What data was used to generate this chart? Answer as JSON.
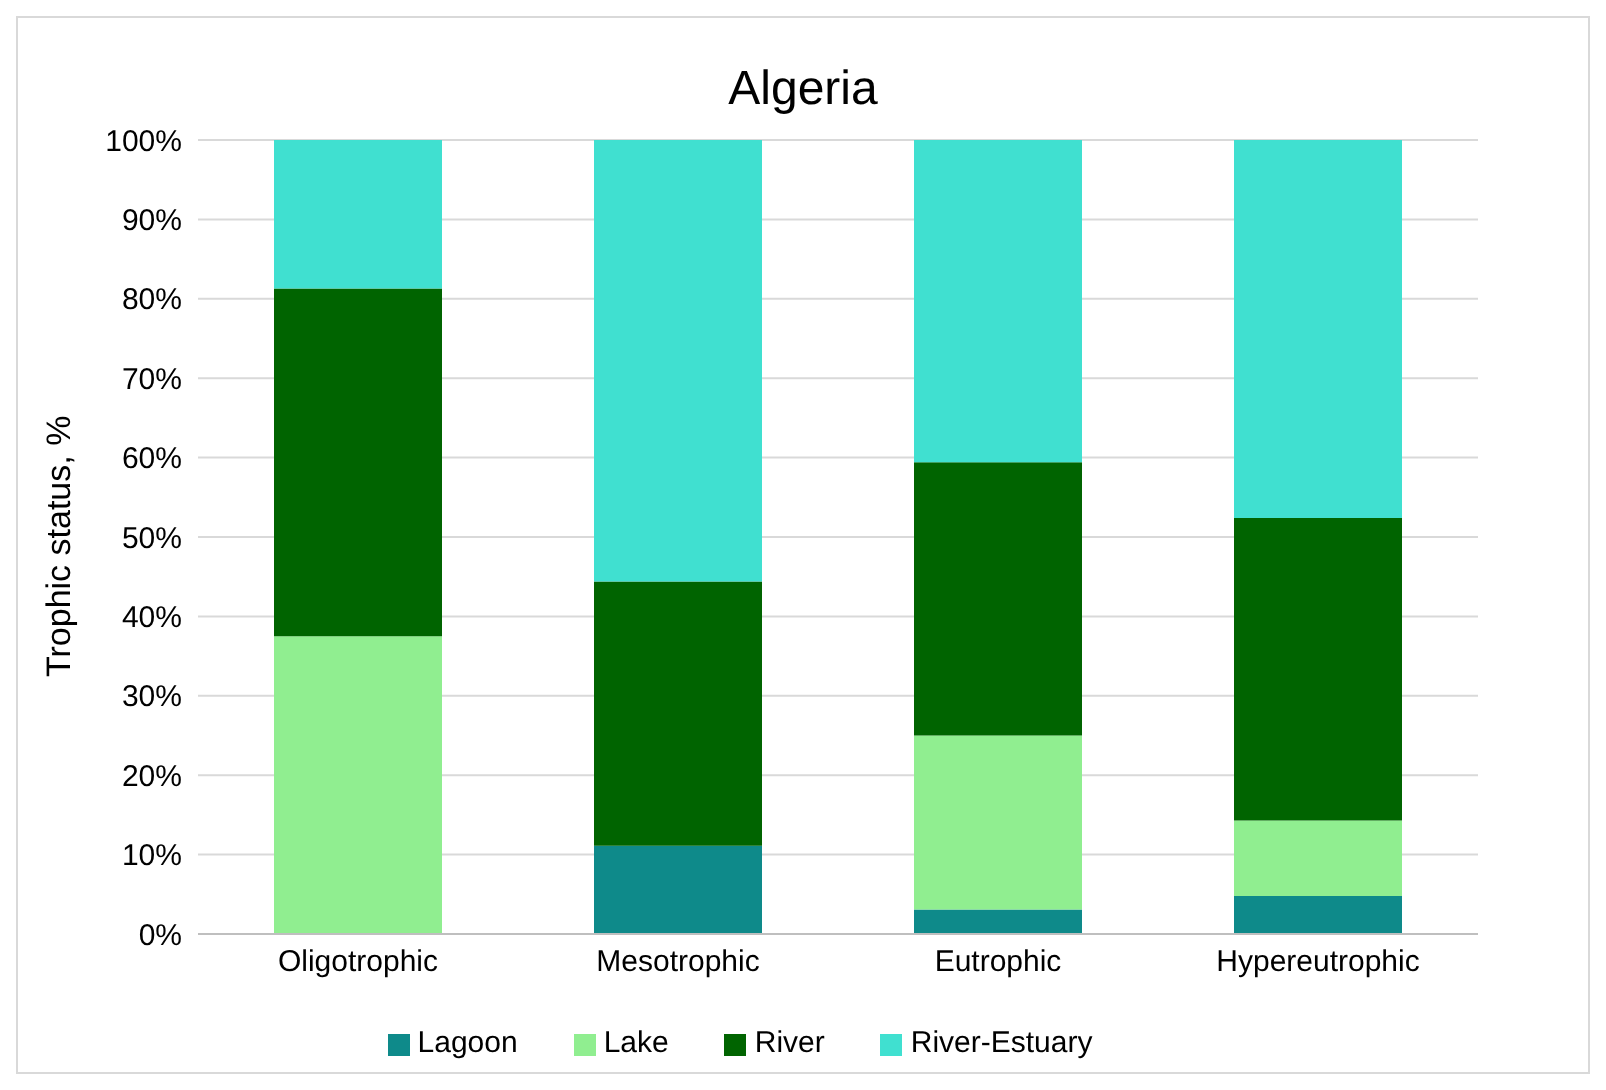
{
  "chart_data": {
    "type": "bar",
    "title": "Algeria",
    "ylabel": "Trophic status, %",
    "stacked": true,
    "categories": [
      "Oligotrophic",
      "Mesotrophic",
      "Eutrophic",
      "Hypereutrophic"
    ],
    "series": [
      {
        "name": "Lagoon",
        "color": "#0e8a8a",
        "values": [
          0,
          11.1,
          3.1,
          4.8
        ]
      },
      {
        "name": "Lake",
        "color": "#90ee90",
        "values": [
          37.5,
          0,
          21.9,
          9.5
        ]
      },
      {
        "name": "River",
        "color": "#006400",
        "values": [
          43.8,
          33.3,
          34.4,
          38.1
        ]
      },
      {
        "name": "River-Estuary",
        "color": "#40e0d0",
        "values": [
          18.7,
          55.6,
          40.6,
          47.6
        ]
      }
    ],
    "ylim": [
      0,
      100
    ],
    "yticks": [
      {
        "value": 0,
        "label": "0%"
      },
      {
        "value": 10,
        "label": "10%"
      },
      {
        "value": 20,
        "label": "20%"
      },
      {
        "value": 30,
        "label": "30%"
      },
      {
        "value": 40,
        "label": "40%"
      },
      {
        "value": 50,
        "label": "50%"
      },
      {
        "value": 60,
        "label": "60%"
      },
      {
        "value": 70,
        "label": "70%"
      },
      {
        "value": 80,
        "label": "80%"
      },
      {
        "value": 90,
        "label": "90%"
      },
      {
        "value": 100,
        "label": "100%"
      }
    ],
    "grid": "y",
    "legend": "bottom"
  }
}
